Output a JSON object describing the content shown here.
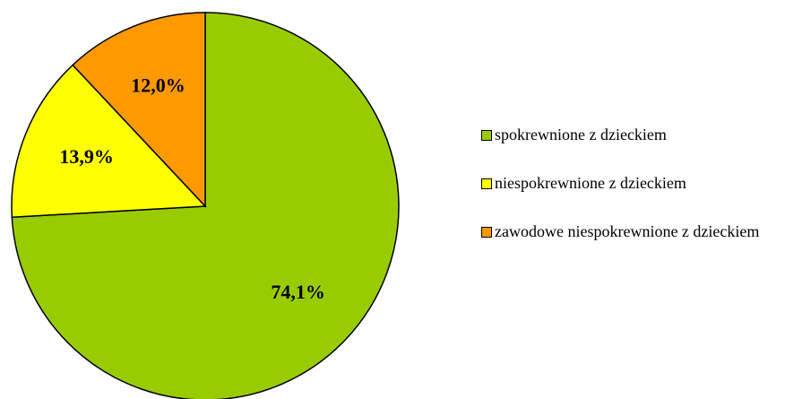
{
  "chart_data": {
    "type": "pie",
    "categories": [
      "spokrewnione z dzieckiem",
      "niespokrewnione z dzieckiem",
      "zawodowe niespokrewnione z dzieckiem"
    ],
    "values": [
      74.1,
      13.9,
      12.0
    ],
    "value_labels": [
      "74,1%",
      "13,9%",
      "12,0%"
    ],
    "colors": [
      "#99cc00",
      "#ffff00",
      "#ff9900"
    ],
    "legend": "right"
  }
}
